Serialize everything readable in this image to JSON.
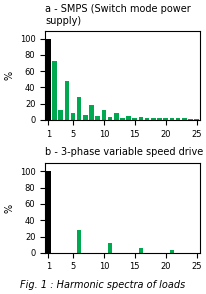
{
  "caption": "Fig. 1 : Harmonic spectra of loads",
  "chart_data": [
    {
      "type": "bar",
      "title": "a - SMPS (Switch mode power supply)",
      "y_label": "%",
      "categories": [
        "1",
        null,
        null,
        null,
        "5",
        null,
        null,
        null,
        null,
        "10",
        null,
        null,
        null,
        null,
        "15",
        null,
        null,
        null,
        null,
        "20",
        null,
        null,
        null,
        null,
        "25"
      ],
      "values": [
        100,
        72,
        12,
        48,
        8,
        28,
        6,
        18,
        5,
        12,
        4,
        8,
        3,
        5,
        3,
        4,
        3,
        3,
        2,
        2,
        2,
        2,
        2,
        1,
        1
      ],
      "colors": [
        "#000000",
        "#00a850",
        "#00a850",
        "#00a850",
        "#00a850",
        "#00a850",
        "#00a850",
        "#00a850",
        "#00a850",
        "#00a850",
        "#00a850",
        "#00a850",
        "#00a850",
        "#00a850",
        "#00a850",
        "#00a850",
        "#00a850",
        "#00a850",
        "#00a850",
        "#00a850",
        "#00a850",
        "#00a850",
        "#00a850",
        "#00a850",
        "#00a850"
      ],
      "ylim": [
        0,
        110
      ],
      "yticks": [
        0,
        20,
        40,
        60,
        80,
        100
      ],
      "grid": false
    },
    {
      "type": "bar",
      "title": "b - 3-phase variable speed drive",
      "y_label": "%",
      "categories": [
        "1",
        null,
        null,
        null,
        "5",
        null,
        null,
        null,
        null,
        "10",
        null,
        null,
        null,
        null,
        "15",
        null,
        null,
        null,
        null,
        "20",
        null,
        null,
        null,
        null,
        "25"
      ],
      "values": [
        100,
        0,
        0,
        0,
        0,
        28,
        0,
        0,
        0,
        0,
        12,
        0,
        0,
        0,
        0,
        6,
        0,
        0,
        0,
        0,
        4,
        0,
        0,
        0,
        0
      ],
      "colors": [
        "#000000",
        "#00a850",
        "#00a850",
        "#00a850",
        "#00a850",
        "#00a850",
        "#00a850",
        "#00a850",
        "#00a850",
        "#00a850",
        "#00a850",
        "#00a850",
        "#00a850",
        "#00a850",
        "#00a850",
        "#00a850",
        "#00a850",
        "#00a850",
        "#00a850",
        "#00a850",
        "#00a850",
        "#00a850",
        "#00a850",
        "#00a850",
        "#00a850"
      ],
      "ylim": [
        0,
        110
      ],
      "yticks": [
        0,
        20,
        40,
        60,
        80,
        100
      ],
      "grid": false
    }
  ]
}
